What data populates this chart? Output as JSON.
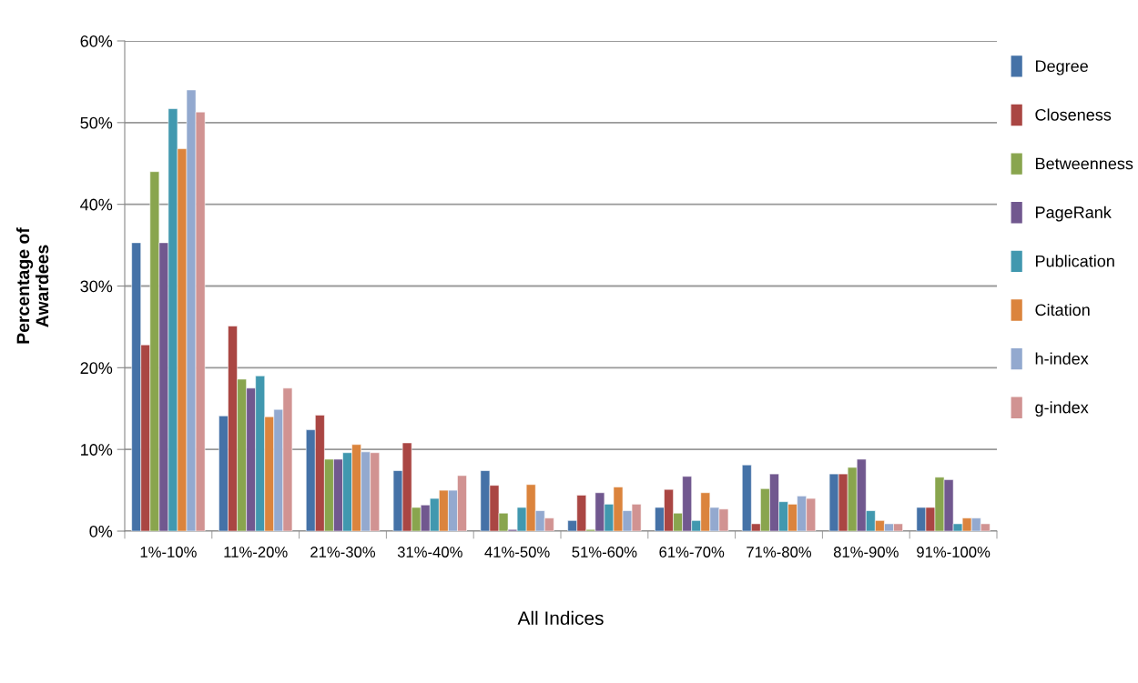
{
  "chart_data": {
    "type": "bar",
    "xlabel": "All Indices",
    "ylabel": "Percentage of\nAwardees",
    "categories": [
      "1%-10%",
      "11%-20%",
      "21%-30%",
      "31%-40%",
      "41%-50%",
      "51%-60%",
      "61%-70%",
      "71%-80%",
      "81%-90%",
      "91%-100%"
    ],
    "series": [
      {
        "name": "Degree",
        "color": "#4572a7",
        "values": [
          35.3,
          14.1,
          12.4,
          7.4,
          7.4,
          1.3,
          2.9,
          8.1,
          7.0,
          2.9
        ]
      },
      {
        "name": "Closeness",
        "color": "#aa4643",
        "values": [
          22.8,
          25.1,
          14.2,
          10.8,
          5.6,
          4.4,
          5.1,
          0.9,
          7.0,
          2.9
        ]
      },
      {
        "name": "Betweenness",
        "color": "#89a54e",
        "values": [
          44.0,
          18.6,
          8.8,
          2.9,
          2.2,
          0.2,
          2.2,
          5.2,
          7.8,
          6.6
        ]
      },
      {
        "name": "PageRank",
        "color": "#71588f",
        "values": [
          35.3,
          17.5,
          8.8,
          3.2,
          0.2,
          4.7,
          6.7,
          7.0,
          8.8,
          6.3
        ]
      },
      {
        "name": "Publication",
        "color": "#4198af",
        "values": [
          51.7,
          19.0,
          9.6,
          4.0,
          2.9,
          3.3,
          1.3,
          3.6,
          2.5,
          0.9
        ]
      },
      {
        "name": "Citation",
        "color": "#db843d",
        "values": [
          46.8,
          14.0,
          10.6,
          5.0,
          5.7,
          5.4,
          4.7,
          3.3,
          1.3,
          1.6
        ]
      },
      {
        "name": "h-index",
        "color": "#93a9cf",
        "values": [
          54.0,
          14.9,
          9.7,
          5.0,
          2.5,
          2.5,
          2.9,
          4.3,
          0.9,
          1.6
        ]
      },
      {
        "name": "g-index",
        "color": "#d19392",
        "values": [
          51.3,
          17.5,
          9.6,
          6.8,
          1.6,
          3.3,
          2.7,
          4.0,
          0.9,
          0.9
        ]
      }
    ],
    "ylim": [
      0,
      60
    ],
    "yticks": [
      {
        "value": 0,
        "label": "0%"
      },
      {
        "value": 10,
        "label": "10%"
      },
      {
        "value": 20,
        "label": "20%"
      },
      {
        "value": 30,
        "label": "30%"
      },
      {
        "value": 40,
        "label": "40%"
      },
      {
        "value": 50,
        "label": "50%"
      },
      {
        "value": 60,
        "label": "60%"
      }
    ],
    "grid": "y",
    "legend": "right"
  }
}
